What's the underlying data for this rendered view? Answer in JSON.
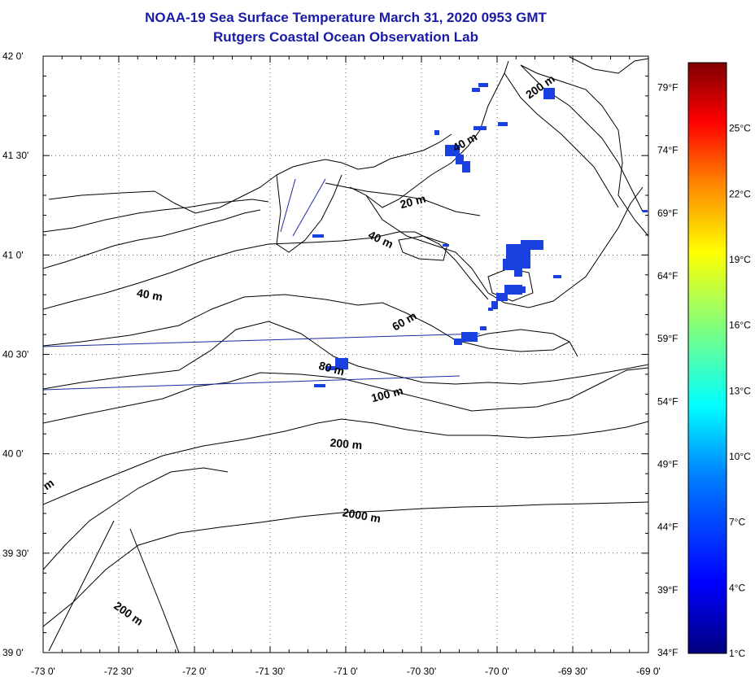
{
  "title": {
    "line1": "NOAA-19 Sea Surface Temperature March 31, 2020 0953 GMT",
    "line2": "Rutgers Coastal Ocean Observation Lab"
  },
  "map": {
    "lat_range": [
      39.0,
      42.0
    ],
    "lon_range": [
      -73.0,
      -69.0
    ],
    "lat_ticks": [
      {
        "value": 42.0,
        "label": "42 0'"
      },
      {
        "value": 41.5,
        "label": "41 30'"
      },
      {
        "value": 41.0,
        "label": "41 0'"
      },
      {
        "value": 40.5,
        "label": "40 30'"
      },
      {
        "value": 40.0,
        "label": "40 0'"
      },
      {
        "value": 39.5,
        "label": "39 30'"
      },
      {
        "value": 39.0,
        "label": "39 0'"
      }
    ],
    "lon_ticks": [
      {
        "value": -73.0,
        "label": "-73 0'"
      },
      {
        "value": -72.5,
        "label": "-72 30'"
      },
      {
        "value": -72.0,
        "label": "-72 0'"
      },
      {
        "value": -71.5,
        "label": "-71 30'"
      },
      {
        "value": -71.0,
        "label": "-71 0'"
      },
      {
        "value": -70.5,
        "label": "-70 30'"
      },
      {
        "value": -70.0,
        "label": "-70 0'"
      },
      {
        "value": -69.5,
        "label": "-69 30'"
      },
      {
        "value": -69.0,
        "label": "-69 0'"
      }
    ],
    "fahrenheit_ticks": [
      {
        "value": 79,
        "label": "79°F"
      },
      {
        "value": 74,
        "label": "74°F"
      },
      {
        "value": 69,
        "label": "69°F"
      },
      {
        "value": 64,
        "label": "64°F"
      },
      {
        "value": 59,
        "label": "59°F"
      },
      {
        "value": 54,
        "label": "54°F"
      },
      {
        "value": 49,
        "label": "49°F"
      },
      {
        "value": 44,
        "label": "44°F"
      },
      {
        "value": 39,
        "label": "39°F"
      },
      {
        "value": 34,
        "label": "34°F"
      }
    ],
    "contour_labels": [
      {
        "text": "200 m",
        "lon": -69.7,
        "lat": 41.83,
        "angle": 35
      },
      {
        "text": "40 m",
        "lon": -70.2,
        "lat": 41.55,
        "angle": 30
      },
      {
        "text": "20 m",
        "lon": -70.55,
        "lat": 41.25,
        "angle": 15
      },
      {
        "text": "40 m",
        "lon": -70.78,
        "lat": 41.06,
        "angle": -25
      },
      {
        "text": "40 m",
        "lon": -72.3,
        "lat": 40.78,
        "angle": -10
      },
      {
        "text": "60 m",
        "lon": -70.6,
        "lat": 40.65,
        "angle": 30
      },
      {
        "text": "80 m",
        "lon": -71.1,
        "lat": 40.41,
        "angle": -15
      },
      {
        "text": "100 m",
        "lon": -70.72,
        "lat": 40.28,
        "angle": 15
      },
      {
        "text": "200 m",
        "lon": -71.0,
        "lat": 40.03,
        "angle": -5
      },
      {
        "text": "2000 m",
        "lon": -70.9,
        "lat": 39.67,
        "angle": -10
      },
      {
        "text": "200 m",
        "lon": -72.45,
        "lat": 39.18,
        "angle": -35
      },
      {
        "text": "m",
        "lon": -72.95,
        "lat": 39.83,
        "angle": 35
      }
    ]
  },
  "colorbar": {
    "celsius_ticks": [
      {
        "value": 25,
        "label": "25°C"
      },
      {
        "value": 22,
        "label": "22°C"
      },
      {
        "value": 19,
        "label": "19°C"
      },
      {
        "value": 16,
        "label": "16°C"
      },
      {
        "value": 13,
        "label": "13°C"
      },
      {
        "value": 10,
        "label": "10°C"
      },
      {
        "value": 7,
        "label": "7°C"
      },
      {
        "value": 4,
        "label": "4°C"
      },
      {
        "value": 1,
        "label": "1°C"
      }
    ],
    "celsius_range": [
      1,
      28
    ],
    "colors": [
      "#00007f",
      "#0000ff",
      "#007fff",
      "#00ffff",
      "#7fff7f",
      "#ffff00",
      "#ff7f00",
      "#ff0000",
      "#7f0000"
    ]
  },
  "sst_color": "#1a40e0"
}
